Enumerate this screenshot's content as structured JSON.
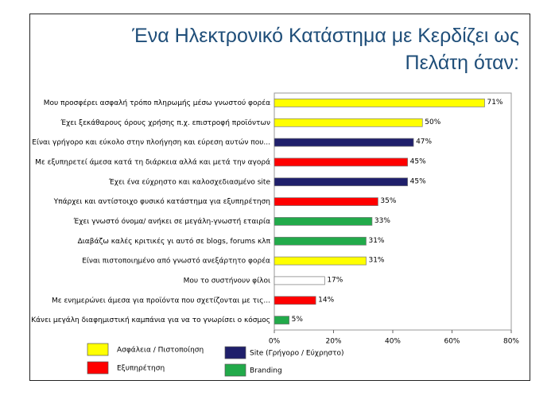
{
  "chart_data": {
    "type": "bar",
    "orientation": "horizontal",
    "title": "Ένα Ηλεκτρονικό Κατάστημα με Κερδίζει ως Πελάτη όταν:",
    "categories": [
      "Μου προσφέρει ασφαλή τρόπο πληρωμής μέσω γνωστού φορέα",
      "Έχει ξεκάθαρους όρους χρήσης π.χ. επιστροφή προϊόντων",
      "Είναι γρήγορο και εύκολο στην πλοήγηση και εύρεση αυτών που...",
      "Με εξυπηρετεί άμεσα κατά τη διάρκεια αλλά και μετά την αγορά",
      "Έχει ένα εύχρηστο και καλοσχεδιασμένο site",
      "Υπάρχει και αντίστοιχο φυσικό κατάστημα για εξυπηρέτηση",
      "Έχει γνωστό όνομα/ ανήκει σε μεγάλη-γνωστή εταιρία",
      "Διαβάζω καλές κριτικές γι αυτό σε blogs, forums κλπ",
      "Είναι πιστοποιημένο από γνωστό ανεξάρτητο φορέα",
      "Μου το συστήνουν φίλοι",
      "Με ενημερώνει άμεσα για προϊόντα που σχετίζονται με τις...",
      "Κάνει μεγάλη διαφημιστική καμπάνια για να το γνωρίσει ο κόσμος"
    ],
    "values": [
      71,
      50,
      47,
      45,
      45,
      35,
      33,
      31,
      31,
      17,
      14,
      5
    ],
    "value_labels": [
      "71%",
      "50%",
      "47%",
      "45%",
      "45%",
      "35%",
      "33%",
      "31%",
      "31%",
      "17%",
      "14%",
      "5%"
    ],
    "colors": [
      "#ffff00",
      "#ffff00",
      "#1f1f6b",
      "#ff0000",
      "#1f1f6b",
      "#ff0000",
      "#22aa4a",
      "#22aa4a",
      "#ffff00",
      "#ffffff",
      "#ff0000",
      "#22aa4a"
    ],
    "xlim": [
      0,
      80
    ],
    "xticks": [
      {
        "value": 0,
        "label": "0%"
      },
      {
        "value": 20,
        "label": "20%"
      },
      {
        "value": 40,
        "label": "40%"
      },
      {
        "value": 60,
        "label": "60%"
      },
      {
        "value": 80,
        "label": "80%"
      }
    ],
    "legend": [
      {
        "name": "Ασφάλεια / Πιστοποίηση",
        "color": "#ffff00"
      },
      {
        "name": "Εξυπηρέτηση",
        "color": "#ff0000"
      },
      {
        "name": "Site (Γρήγορο / Εύχρηστο)",
        "color": "#1f1f6b"
      },
      {
        "name": "Branding",
        "color": "#22aa4a"
      }
    ]
  }
}
